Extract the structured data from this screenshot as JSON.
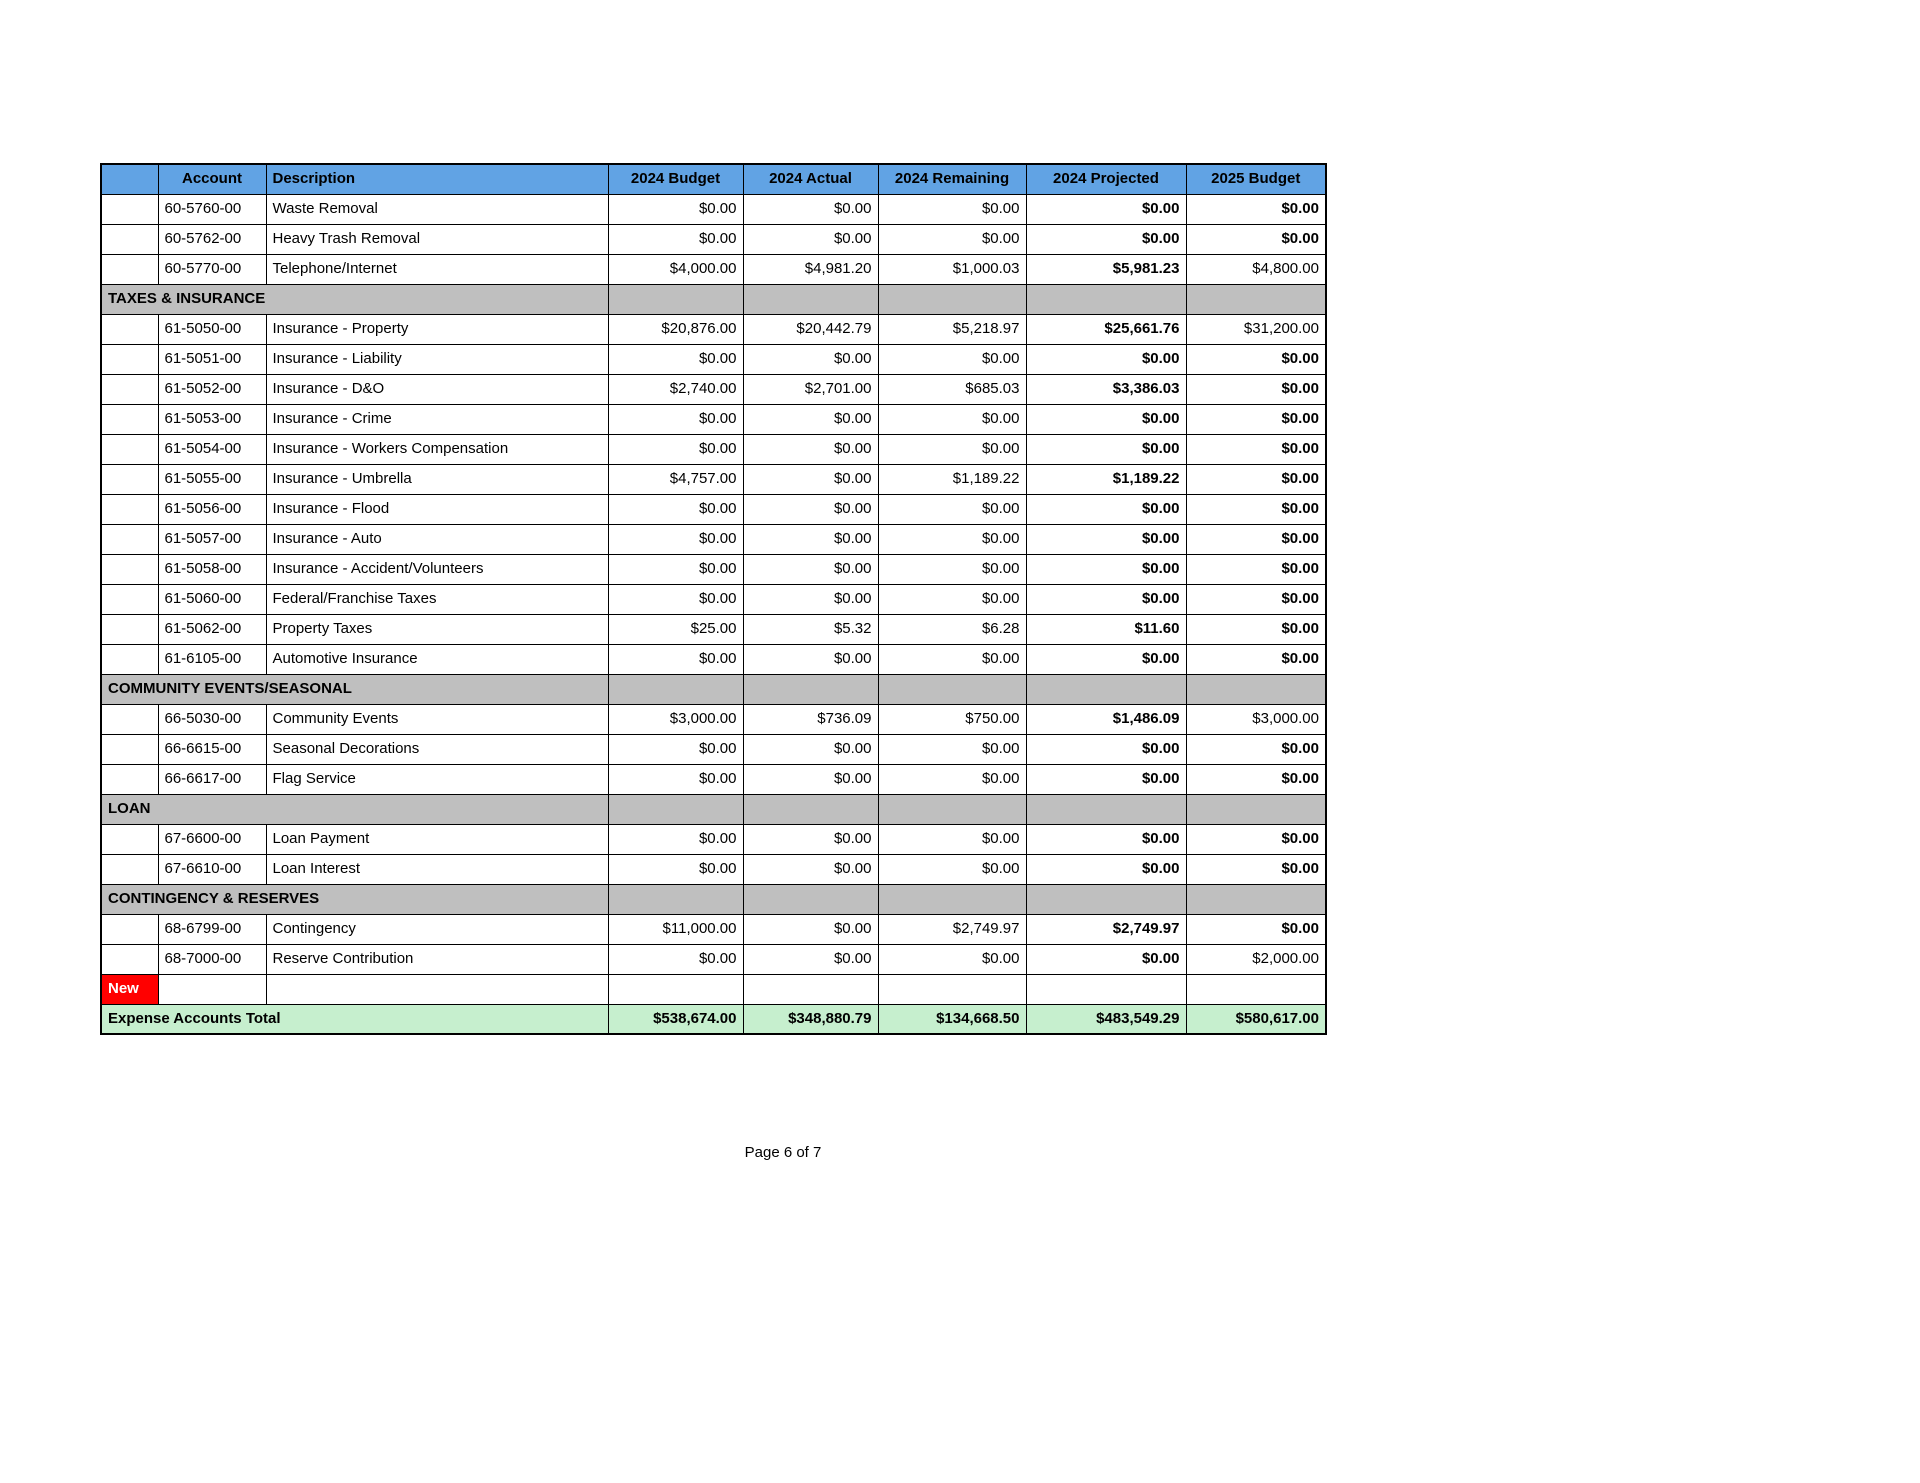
{
  "page": {
    "footer": "Page 6 of 7"
  },
  "table": {
    "colors": {
      "header_bg": "#61a3e4",
      "section_bg": "#bfbfbf",
      "new_bg": "#ff0000",
      "total_bg": "#c6efce"
    },
    "columns": [
      {
        "key": "flag",
        "label": ""
      },
      {
        "key": "account",
        "label": "Account"
      },
      {
        "key": "description",
        "label": "Description"
      },
      {
        "key": "budget2024",
        "label": "2024 Budget"
      },
      {
        "key": "actual2024",
        "label": "2024 Actual"
      },
      {
        "key": "remaining2024",
        "label": "2024 Remaining"
      },
      {
        "key": "projected2024",
        "label": "2024 Projected"
      },
      {
        "key": "budget2025",
        "label": "2025 Budget"
      }
    ],
    "rows": [
      {
        "type": "item",
        "account": "60-5760-00",
        "description": "Waste Removal",
        "values": [
          "$0.00",
          "$0.00",
          "$0.00",
          "$0.00",
          "$0.00"
        ],
        "bold": [
          false,
          false,
          false,
          true,
          true
        ]
      },
      {
        "type": "item",
        "account": "60-5762-00",
        "description": "Heavy Trash Removal",
        "values": [
          "$0.00",
          "$0.00",
          "$0.00",
          "$0.00",
          "$0.00"
        ],
        "bold": [
          false,
          false,
          false,
          true,
          true
        ]
      },
      {
        "type": "item",
        "account": "60-5770-00",
        "description": "Telephone/Internet",
        "values": [
          "$4,000.00",
          "$4,981.20",
          "$1,000.03",
          "$5,981.23",
          "$4,800.00"
        ],
        "bold": [
          false,
          false,
          false,
          true,
          false
        ]
      },
      {
        "type": "section",
        "label": "TAXES & INSURANCE"
      },
      {
        "type": "item",
        "account": "61-5050-00",
        "description": "Insurance - Property",
        "values": [
          "$20,876.00",
          "$20,442.79",
          "$5,218.97",
          "$25,661.76",
          "$31,200.00"
        ],
        "bold": [
          false,
          false,
          false,
          true,
          false
        ]
      },
      {
        "type": "item",
        "account": "61-5051-00",
        "description": "Insurance - Liability",
        "values": [
          "$0.00",
          "$0.00",
          "$0.00",
          "$0.00",
          "$0.00"
        ],
        "bold": [
          false,
          false,
          false,
          true,
          true
        ]
      },
      {
        "type": "item",
        "account": "61-5052-00",
        "description": "Insurance - D&O",
        "values": [
          "$2,740.00",
          "$2,701.00",
          "$685.03",
          "$3,386.03",
          "$0.00"
        ],
        "bold": [
          false,
          false,
          false,
          true,
          true
        ]
      },
      {
        "type": "item",
        "account": "61-5053-00",
        "description": "Insurance - Crime",
        "values": [
          "$0.00",
          "$0.00",
          "$0.00",
          "$0.00",
          "$0.00"
        ],
        "bold": [
          false,
          false,
          false,
          true,
          true
        ]
      },
      {
        "type": "item",
        "account": "61-5054-00",
        "description": "Insurance - Workers Compensation",
        "values": [
          "$0.00",
          "$0.00",
          "$0.00",
          "$0.00",
          "$0.00"
        ],
        "bold": [
          false,
          false,
          false,
          true,
          true
        ]
      },
      {
        "type": "item",
        "account": "61-5055-00",
        "description": "Insurance - Umbrella",
        "values": [
          "$4,757.00",
          "$0.00",
          "$1,189.22",
          "$1,189.22",
          "$0.00"
        ],
        "bold": [
          false,
          false,
          false,
          true,
          true
        ]
      },
      {
        "type": "item",
        "account": "61-5056-00",
        "description": "Insurance - Flood",
        "values": [
          "$0.00",
          "$0.00",
          "$0.00",
          "$0.00",
          "$0.00"
        ],
        "bold": [
          false,
          false,
          false,
          true,
          true
        ]
      },
      {
        "type": "item",
        "account": "61-5057-00",
        "description": "Insurance - Auto",
        "values": [
          "$0.00",
          "$0.00",
          "$0.00",
          "$0.00",
          "$0.00"
        ],
        "bold": [
          false,
          false,
          false,
          true,
          true
        ]
      },
      {
        "type": "item",
        "account": "61-5058-00",
        "description": "Insurance - Accident/Volunteers",
        "values": [
          "$0.00",
          "$0.00",
          "$0.00",
          "$0.00",
          "$0.00"
        ],
        "bold": [
          false,
          false,
          false,
          true,
          true
        ]
      },
      {
        "type": "item",
        "account": "61-5060-00",
        "description": "Federal/Franchise Taxes",
        "values": [
          "$0.00",
          "$0.00",
          "$0.00",
          "$0.00",
          "$0.00"
        ],
        "bold": [
          false,
          false,
          false,
          true,
          true
        ]
      },
      {
        "type": "item",
        "account": "61-5062-00",
        "description": "Property Taxes",
        "values": [
          "$25.00",
          "$5.32",
          "$6.28",
          "$11.60",
          "$0.00"
        ],
        "bold": [
          false,
          false,
          false,
          true,
          true
        ]
      },
      {
        "type": "item",
        "account": "61-6105-00",
        "description": "Automotive Insurance",
        "values": [
          "$0.00",
          "$0.00",
          "$0.00",
          "$0.00",
          "$0.00"
        ],
        "bold": [
          false,
          false,
          false,
          true,
          true
        ]
      },
      {
        "type": "section",
        "label": "COMMUNITY EVENTS/SEASONAL"
      },
      {
        "type": "item",
        "account": "66-5030-00",
        "description": "Community Events",
        "values": [
          "$3,000.00",
          "$736.09",
          "$750.00",
          "$1,486.09",
          "$3,000.00"
        ],
        "bold": [
          false,
          false,
          false,
          true,
          false
        ]
      },
      {
        "type": "item",
        "account": "66-6615-00",
        "description": "Seasonal Decorations",
        "values": [
          "$0.00",
          "$0.00",
          "$0.00",
          "$0.00",
          "$0.00"
        ],
        "bold": [
          false,
          false,
          false,
          true,
          true
        ]
      },
      {
        "type": "item",
        "account": "66-6617-00",
        "description": "Flag Service",
        "values": [
          "$0.00",
          "$0.00",
          "$0.00",
          "$0.00",
          "$0.00"
        ],
        "bold": [
          false,
          false,
          false,
          true,
          true
        ]
      },
      {
        "type": "section",
        "label": "LOAN"
      },
      {
        "type": "item",
        "account": "67-6600-00",
        "description": "Loan Payment",
        "values": [
          "$0.00",
          "$0.00",
          "$0.00",
          "$0.00",
          "$0.00"
        ],
        "bold": [
          false,
          false,
          false,
          true,
          true
        ]
      },
      {
        "type": "item",
        "account": "67-6610-00",
        "description": "Loan Interest",
        "values": [
          "$0.00",
          "$0.00",
          "$0.00",
          "$0.00",
          "$0.00"
        ],
        "bold": [
          false,
          false,
          false,
          true,
          true
        ]
      },
      {
        "type": "section",
        "label": "CONTINGENCY & RESERVES"
      },
      {
        "type": "item",
        "account": "68-6799-00",
        "description": "Contingency",
        "values": [
          "$11,000.00",
          "$0.00",
          "$2,749.97",
          "$2,749.97",
          "$0.00"
        ],
        "bold": [
          false,
          false,
          false,
          true,
          true
        ]
      },
      {
        "type": "item",
        "account": "68-7000-00",
        "description": "Reserve Contribution",
        "values": [
          "$0.00",
          "$0.00",
          "$0.00",
          "$0.00",
          "$2,000.00"
        ],
        "bold": [
          false,
          false,
          false,
          true,
          false
        ]
      },
      {
        "type": "new",
        "flag": "New"
      },
      {
        "type": "total",
        "label": "Expense Accounts Total",
        "values": [
          "$538,674.00",
          "$348,880.79",
          "$134,668.50",
          "$483,549.29",
          "$580,617.00"
        ]
      }
    ]
  }
}
